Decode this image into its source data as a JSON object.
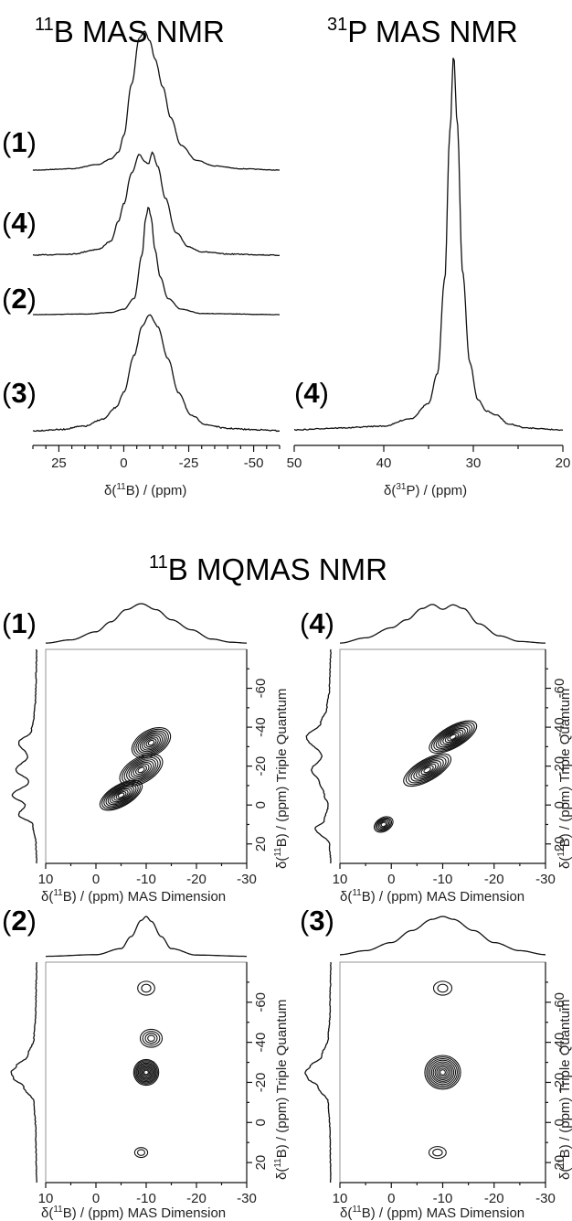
{
  "titles": {
    "b_mas": {
      "sup": "11",
      "text": "B MAS NMR"
    },
    "p_mas": {
      "sup": "31",
      "text": "P MAS NMR"
    },
    "mqmas": {
      "sup": "11",
      "text": "B MQMAS NMR"
    }
  },
  "sample_labels": {
    "s1": "1",
    "s2": "2",
    "s3": "3",
    "s4": "4"
  },
  "axis_labels": {
    "b_mas_x": {
      "pre": "δ(",
      "sup": "11",
      "post": "B) / (ppm)"
    },
    "p_mas_x": {
      "pre": "δ(",
      "sup": "31",
      "post": "P) / (ppm)"
    },
    "mq_x": {
      "pre": "δ(",
      "sup": "11",
      "post": "B) / (ppm) MAS Dimension"
    },
    "mq_y": {
      "pre": "δ(",
      "sup": "11",
      "post": "B) / (ppm) Triple Quantum"
    }
  },
  "colors": {
    "line": "#111111",
    "frame": "#888888",
    "background": "#ffffff"
  },
  "chart_data": [
    {
      "id": "b_mas",
      "type": "line",
      "title": "11B MAS NMR",
      "xlabel": "δ(11B) / (ppm)",
      "xlim": [
        35,
        -60
      ],
      "xticks": [
        "25",
        "0",
        "-25",
        "-50"
      ],
      "xtick_values": [
        25,
        0,
        -25,
        -50
      ],
      "grid": false,
      "series": [
        {
          "name": "(1)",
          "x": [
            35,
            20,
            10,
            5,
            2,
            0,
            -3,
            -6,
            -8,
            -10,
            -12,
            -15,
            -18,
            -22,
            -28,
            -35,
            -45,
            -60
          ],
          "y": [
            0.0,
            0.01,
            0.04,
            0.08,
            0.13,
            0.25,
            0.62,
            0.95,
            1.0,
            0.93,
            0.8,
            0.6,
            0.38,
            0.18,
            0.07,
            0.03,
            0.01,
            0.0
          ]
        },
        {
          "name": "(4)",
          "x": [
            35,
            20,
            10,
            5,
            2,
            0,
            -3,
            -6,
            -8,
            -9.5,
            -11,
            -13,
            -16,
            -20,
            -25,
            -30,
            -40,
            -60
          ],
          "y": [
            0.0,
            0.01,
            0.05,
            0.12,
            0.3,
            0.45,
            0.72,
            0.88,
            0.82,
            0.8,
            0.9,
            0.78,
            0.5,
            0.2,
            0.07,
            0.03,
            0.01,
            0.0
          ]
        },
        {
          "name": "(2)",
          "x": [
            35,
            15,
            5,
            0,
            -4,
            -7,
            -8.5,
            -9.5,
            -10.5,
            -12,
            -14,
            -17,
            -22,
            -30,
            -60
          ],
          "y": [
            0.0,
            0.005,
            0.02,
            0.05,
            0.15,
            0.55,
            0.9,
            1.0,
            0.9,
            0.6,
            0.35,
            0.15,
            0.05,
            0.01,
            0.0
          ]
        },
        {
          "name": "(3)",
          "x": [
            35,
            25,
            15,
            8,
            3,
            0,
            -4,
            -7,
            -10,
            -13,
            -17,
            -21,
            -26,
            -32,
            -40,
            -50,
            -60
          ],
          "y": [
            0.0,
            0.01,
            0.04,
            0.1,
            0.2,
            0.33,
            0.65,
            0.9,
            1.0,
            0.9,
            0.62,
            0.33,
            0.13,
            0.05,
            0.02,
            0.01,
            0.0
          ]
        }
      ]
    },
    {
      "id": "p_mas",
      "type": "line",
      "title": "31P MAS NMR",
      "xlabel": "δ(31P) / (ppm)",
      "xlim": [
        50,
        20
      ],
      "xticks": [
        "50",
        "40",
        "30",
        "20"
      ],
      "xtick_values": [
        50,
        40,
        30,
        20
      ],
      "grid": false,
      "series": [
        {
          "name": "(4)",
          "x": [
            50,
            45,
            40,
            37,
            35,
            34,
            33.2,
            32.6,
            32.2,
            31.8,
            31.2,
            30.4,
            29.5,
            28.5,
            27.5,
            26,
            24,
            20
          ],
          "y": [
            0.0,
            0.005,
            0.01,
            0.03,
            0.07,
            0.15,
            0.4,
            0.8,
            1.0,
            0.82,
            0.42,
            0.18,
            0.08,
            0.05,
            0.04,
            0.015,
            0.005,
            0.0
          ]
        }
      ]
    },
    {
      "id": "mq_1",
      "type": "contour",
      "sample": "(1)",
      "xlabel": "δ(11B) / (ppm) MAS Dimension",
      "ylabel": "δ(11B) / (ppm) Triple Quantum",
      "xlim": [
        10,
        -30
      ],
      "ylim": [
        30,
        -80
      ],
      "xticks": [
        "10",
        "0",
        "-10",
        "-20",
        "-30"
      ],
      "xtick_values": [
        10,
        0,
        -10,
        -20,
        -30
      ],
      "yticks": [
        "-60",
        "-40",
        "-20",
        "0",
        "20"
      ],
      "ytick_values": [
        -60,
        -40,
        -20,
        0,
        20
      ],
      "peaks": [
        {
          "x": -5,
          "y": -5,
          "wx": 4.5,
          "wy": 5,
          "a": 1.0
        },
        {
          "x": -9,
          "y": -18,
          "wx": 4.5,
          "wy": 6,
          "a": 0.85
        },
        {
          "x": -11,
          "y": -32,
          "wx": 4.0,
          "wy": 6,
          "a": 0.85
        }
      ],
      "projection_f2": {
        "x": [
          10,
          5,
          0,
          -3,
          -6,
          -9,
          -12,
          -15,
          -19,
          -23,
          -27,
          -30
        ],
        "y": [
          0.02,
          0.1,
          0.3,
          0.55,
          0.85,
          1.0,
          0.85,
          0.6,
          0.35,
          0.12,
          0.04,
          0.02
        ]
      },
      "projection_f1": {
        "y": [
          30,
          20,
          10,
          5,
          0,
          -5,
          -12,
          -18,
          -25,
          -32,
          -38,
          -45,
          -55,
          -65,
          -80
        ],
        "v": [
          0.0,
          0.02,
          0.15,
          0.7,
          0.45,
          0.95,
          0.3,
          0.8,
          0.35,
          0.7,
          0.2,
          0.1,
          0.04,
          0.02,
          0.0
        ]
      }
    },
    {
      "id": "mq_4",
      "type": "contour",
      "sample": "(4)",
      "xlabel": "δ(11B) / (ppm) MAS Dimension",
      "ylabel": "δ(11B) / (ppm) Triple Quantum",
      "xlim": [
        10,
        -30
      ],
      "ylim": [
        30,
        -80
      ],
      "xticks": [
        "10",
        "0",
        "-10",
        "-20",
        "-30"
      ],
      "xtick_values": [
        10,
        0,
        -10,
        -20,
        -30
      ],
      "yticks": [
        "-60",
        "-40",
        "-20",
        "0",
        "20"
      ],
      "ytick_values": [
        -60,
        -40,
        -20,
        0,
        20
      ],
      "peaks": [
        {
          "x": -7,
          "y": -18,
          "wx": 5,
          "wy": 5,
          "a": 0.9
        },
        {
          "x": -12,
          "y": -35,
          "wx": 5,
          "wy": 5,
          "a": 1.0
        },
        {
          "x": 1.5,
          "y": 10,
          "wx": 1.8,
          "wy": 3,
          "a": 0.55
        }
      ],
      "projection_f2": {
        "x": [
          10,
          5,
          0,
          -3,
          -6,
          -8,
          -10,
          -12,
          -14,
          -17,
          -21,
          -25,
          -30
        ],
        "y": [
          0.02,
          0.15,
          0.4,
          0.6,
          0.88,
          0.98,
          0.86,
          0.97,
          0.88,
          0.5,
          0.2,
          0.06,
          0.02
        ]
      },
      "projection_f1": {
        "y": [
          30,
          20,
          12,
          8,
          0,
          -5,
          -12,
          -18,
          -25,
          -35,
          -42,
          -50,
          -60,
          -70,
          -80
        ],
        "v": [
          0.0,
          0.05,
          0.6,
          0.25,
          0.1,
          0.25,
          0.45,
          0.75,
          0.35,
          0.95,
          0.4,
          0.15,
          0.05,
          0.03,
          0.0
        ]
      }
    },
    {
      "id": "mq_2",
      "type": "contour",
      "sample": "(2)",
      "xlabel": "δ(11B) / (ppm) MAS Dimension",
      "ylabel": "δ(11B) / (ppm) Triple Quantum",
      "xlim": [
        10,
        -30
      ],
      "ylim": [
        30,
        -80
      ],
      "xticks": [
        "10",
        "0",
        "-10",
        "-20",
        "-30"
      ],
      "xtick_values": [
        10,
        0,
        -10,
        -20,
        -30
      ],
      "yticks": [
        "-60",
        "-40",
        "-20",
        "0",
        "20"
      ],
      "ytick_values": [
        -60,
        -40,
        -20,
        0,
        20
      ],
      "peaks": [
        {
          "x": -10,
          "y": -25,
          "wx": 2.3,
          "wy": 6,
          "a": 1.0
        },
        {
          "x": -11,
          "y": -42,
          "wx": 2,
          "wy": 4,
          "a": 0.4
        },
        {
          "x": -10,
          "y": -67,
          "wx": 1.5,
          "wy": 3,
          "a": 0.2
        },
        {
          "x": -9,
          "y": 15,
          "wx": 1.1,
          "wy": 2,
          "a": 0.17
        }
      ],
      "projection_f2": {
        "x": [
          10,
          0,
          -5,
          -7,
          -9,
          -10,
          -11,
          -13,
          -15,
          -20,
          -30
        ],
        "y": [
          0.01,
          0.05,
          0.2,
          0.5,
          0.9,
          1.0,
          0.88,
          0.5,
          0.2,
          0.04,
          0.01
        ]
      },
      "projection_f1": {
        "y": [
          30,
          15,
          5,
          -10,
          -18,
          -22,
          -25,
          -28,
          -33,
          -42,
          -55,
          -80
        ],
        "v": [
          0.0,
          0.02,
          0.03,
          0.1,
          0.5,
          0.9,
          1.0,
          0.8,
          0.35,
          0.1,
          0.03,
          0.0
        ]
      }
    },
    {
      "id": "mq_3",
      "type": "contour",
      "sample": "(3)",
      "xlabel": "δ(11B) / (ppm) MAS Dimension",
      "ylabel": "δ(11B) / (ppm) Triple Quantum",
      "xlim": [
        10,
        -30
      ],
      "ylim": [
        30,
        -80
      ],
      "xticks": [
        "10",
        "0",
        "-10",
        "-20",
        "-30"
      ],
      "xtick_values": [
        10,
        0,
        -10,
        -20,
        -30
      ],
      "yticks": [
        "-60",
        "-40",
        "-20",
        "0",
        "20"
      ],
      "ytick_values": [
        -60,
        -40,
        -20,
        0,
        20
      ],
      "peaks": [
        {
          "x": -10,
          "y": -25,
          "wx": 3.3,
          "wy": 8,
          "a": 1.0
        },
        {
          "x": -10,
          "y": -67,
          "wx": 1.6,
          "wy": 3,
          "a": 0.2
        },
        {
          "x": -9,
          "y": 15,
          "wx": 1.5,
          "wy": 2.5,
          "a": 0.2
        }
      ],
      "projection_f2": {
        "x": [
          10,
          5,
          0,
          -4,
          -8,
          -10,
          -12,
          -16,
          -20,
          -25,
          -30
        ],
        "y": [
          0.05,
          0.15,
          0.35,
          0.65,
          0.93,
          1.0,
          0.93,
          0.65,
          0.35,
          0.15,
          0.05
        ]
      },
      "projection_f1": {
        "y": [
          30,
          15,
          5,
          -10,
          -18,
          -22,
          -25,
          -28,
          -33,
          -42,
          -55,
          -80
        ],
        "v": [
          0.0,
          0.02,
          0.03,
          0.1,
          0.5,
          0.9,
          1.0,
          0.8,
          0.35,
          0.1,
          0.03,
          0.0
        ]
      }
    }
  ]
}
